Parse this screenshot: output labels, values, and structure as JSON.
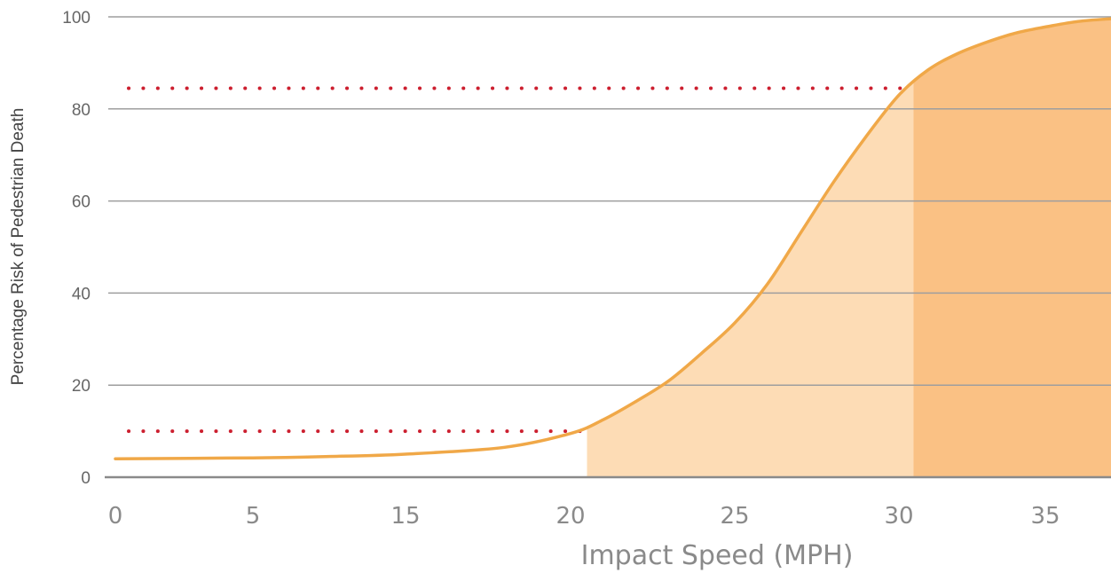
{
  "chart_data": {
    "type": "area",
    "xlabel": "Impact Speed (MPH)",
    "ylabel": "Percentage Risk of Pedestrian Death",
    "y_ticks": [
      "0",
      "20",
      "40",
      "60",
      "80",
      "100"
    ],
    "x_ticks": [
      {
        "label": "0",
        "value": 0
      },
      {
        "label": "5",
        "value": 5
      },
      {
        "label": "15",
        "value": 15
      },
      {
        "label": "20",
        "value": 20
      },
      {
        "label": "25",
        "value": 25
      },
      {
        "label": "30",
        "value": 30
      },
      {
        "label": "35",
        "value": 35
      }
    ],
    "ylim": [
      0,
      100
    ],
    "xlim": [
      0,
      37
    ],
    "grid": true,
    "series": [
      {
        "x": [
          0,
          5,
          10,
          15,
          18,
          20,
          21,
          22,
          23,
          24,
          25,
          26,
          27,
          28,
          29,
          30,
          31,
          32,
          33,
          34,
          35,
          36,
          37
        ],
        "y": [
          4,
          4.2,
          4.5,
          5,
          6.5,
          9.5,
          12.5,
          16.5,
          21,
          27,
          33.5,
          42,
          53,
          64,
          74,
          83,
          88.5,
          92,
          94.5,
          96.5,
          97.8,
          99,
          99.6
        ]
      }
    ],
    "shaded_regions": [
      {
        "x_start": 20.5,
        "x_end": 30.5,
        "color": "#fddcb5"
      },
      {
        "x_start": 30.5,
        "x_end": 37,
        "color": "#fac184"
      }
    ],
    "reference_lines": [
      {
        "y": 10,
        "x_end": 20.5
      },
      {
        "y": 84.5,
        "x_end": 30.5
      }
    ],
    "colors": {
      "curve": "#f0a848",
      "reference": "#cc1f2f",
      "grid": "#9e9e9e",
      "axis": "#8a8a8a"
    }
  }
}
